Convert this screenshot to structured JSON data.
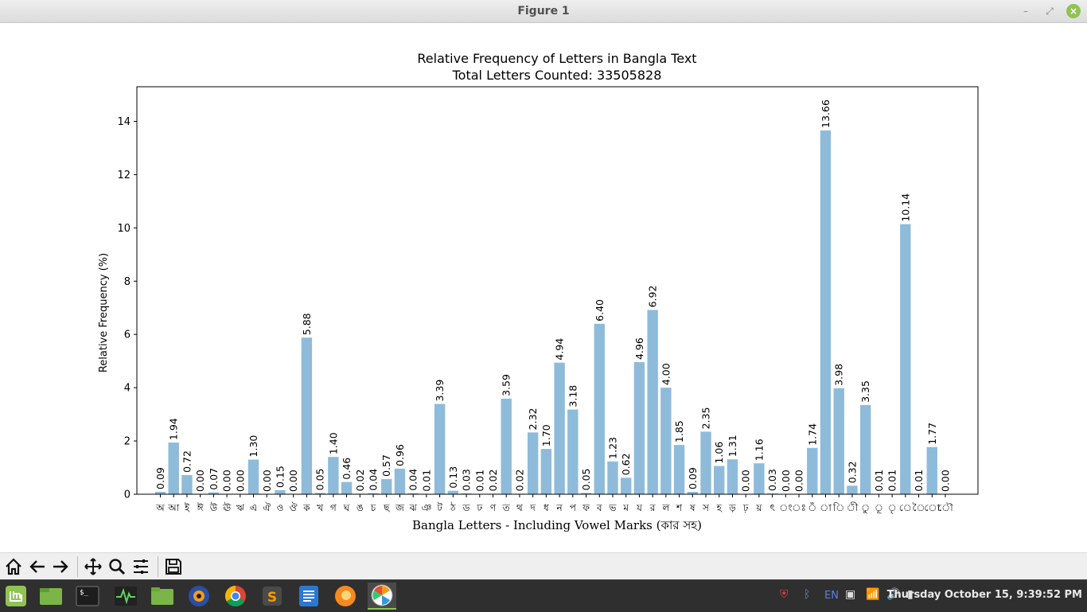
{
  "window": {
    "title": "Figure 1"
  },
  "chart_data": {
    "type": "bar",
    "title": "Relative Frequency of Letters in Bangla Text",
    "subtitle": "Total Letters Counted: 33505828",
    "xlabel": "Bangla Letters - Including Vowel Marks (কার সহ)",
    "ylabel": "Relative Frequency (%)",
    "ylim": [
      0,
      15.3
    ],
    "yticks": [
      0,
      2,
      4,
      6,
      8,
      10,
      12,
      14
    ],
    "grid": false,
    "bar_color": "#8fbbda",
    "categories": [
      "অ",
      "আ",
      "ই",
      "ঈ",
      "উ",
      "ঊ",
      "ঋ",
      "এ",
      "ঐ",
      "ও",
      "ঔ",
      "ক",
      "খ",
      "গ",
      "ঘ",
      "ঙ",
      "চ",
      "ছ",
      "জ",
      "ঝ",
      "ঞ",
      "ট",
      "ঠ",
      "ড",
      "ঢ",
      "ণ",
      "ত",
      "থ",
      "দ",
      "ধ",
      "ন",
      "প",
      "ফ",
      "ব",
      "ভ",
      "ম",
      "য",
      "র",
      "ল",
      "শ",
      "ষ",
      "স",
      "হ",
      "ড়",
      "ঢ়",
      "য়",
      "ৎ",
      "ং",
      "ঃ",
      "ঁ",
      "া",
      "ি",
      "ী",
      "ু",
      "ূ",
      "ৃ",
      "ে",
      "ৈ",
      "ো",
      "ৌ"
    ],
    "values": [
      0.09,
      1.94,
      0.72,
      0.0,
      0.07,
      0.0,
      0.0,
      1.3,
      0.0,
      0.15,
      0.0,
      5.88,
      0.05,
      1.4,
      0.46,
      0.02,
      0.04,
      0.57,
      0.96,
      0.04,
      0.01,
      3.39,
      0.13,
      0.03,
      0.01,
      0.02,
      3.59,
      0.02,
      2.32,
      1.7,
      4.94,
      3.18,
      0.05,
      6.4,
      1.23,
      0.62,
      4.96,
      6.92,
      4.0,
      1.85,
      0.09,
      2.35,
      1.06,
      1.31,
      0.0,
      1.16,
      0.03,
      0.0,
      0.0,
      1.74,
      13.66,
      3.98,
      0.32,
      3.35,
      0.01,
      0.01,
      10.14,
      0.01,
      1.77,
      0.0
    ],
    "labels": [
      "0.09",
      "1.94",
      "0.72",
      "0.00",
      "0.07",
      "0.00",
      "0.00",
      "1.30",
      "0.00",
      "0.15",
      "0.00",
      "5.88",
      "0.05",
      "1.40",
      "0.46",
      "0.02",
      "0.04",
      "0.57",
      "0.96",
      "0.04",
      "0.01",
      "3.39",
      "0.13",
      "0.03",
      "0.01",
      "0.02",
      "3.59",
      "0.02",
      "2.32",
      "1.70",
      "4.94",
      "3.18",
      "0.05",
      "6.40",
      "1.23",
      "0.62",
      "4.96",
      "6.92",
      "4.00",
      "1.85",
      "0.09",
      "2.35",
      "1.06",
      "1.31",
      "0.00",
      "1.16",
      "0.03",
      "0.00",
      "0.00",
      "1.74",
      "13.66",
      "3.98",
      "0.32",
      "3.35",
      "0.01",
      "0.01",
      "10.14",
      "0.01",
      "1.77",
      "0.00"
    ]
  },
  "toolbar": [
    {
      "name": "home-button",
      "icon": "home-icon"
    },
    {
      "name": "back-button",
      "icon": "back-arrow-icon"
    },
    {
      "name": "forward-button",
      "icon": "forward-arrow-icon"
    },
    {
      "name": "pan-button",
      "icon": "pan-icon"
    },
    {
      "name": "zoom-button",
      "icon": "zoom-icon"
    },
    {
      "name": "configure-subplots-button",
      "icon": "sliders-icon"
    },
    {
      "name": "save-button",
      "icon": "save-icon"
    }
  ],
  "taskbar": {
    "apps": [
      "mint-menu-icon",
      "terminal-icon",
      "system-monitor-icon",
      "files-icon",
      "audio-icon",
      "chrome-icon",
      "sublime-icon",
      "text-editor-icon",
      "firefox-icon",
      "matplotlib-icon"
    ],
    "lang": "EN",
    "clock": "Thursday October 15,  9:39:52 PM"
  }
}
